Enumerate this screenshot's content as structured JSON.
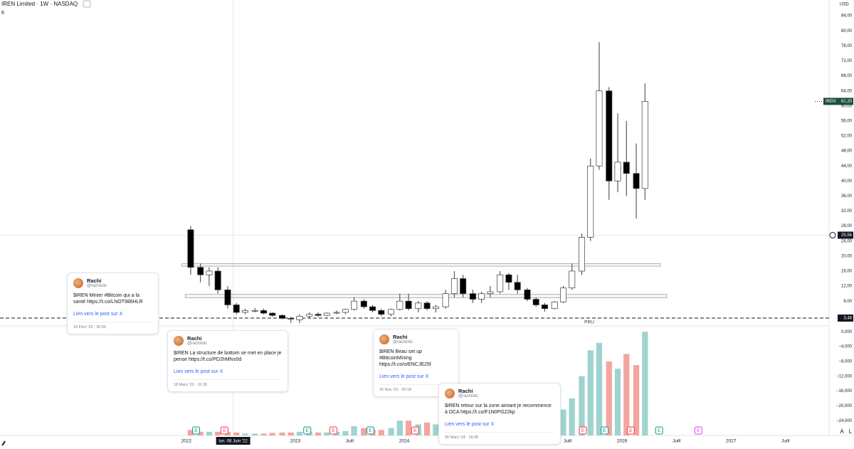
{
  "chart_data": {
    "type": "candlestick",
    "title": "IREN Limited · 1W · NASDAQ",
    "subtitle": "6",
    "currency": "USD",
    "x": [
      2022.04,
      2022.13,
      2022.21,
      2022.29,
      2022.38,
      2022.46,
      2022.54,
      2022.63,
      2022.71,
      2022.79,
      2022.88,
      2022.96,
      2023.04,
      2023.13,
      2023.21,
      2023.29,
      2023.38,
      2023.46,
      2023.54,
      2023.63,
      2023.71,
      2023.79,
      2023.88,
      2023.96,
      2024.04,
      2024.13,
      2024.21,
      2024.29,
      2024.38,
      2024.46,
      2024.54,
      2024.63,
      2024.71,
      2024.79,
      2024.88,
      2024.96,
      2025.04,
      2025.13,
      2025.21,
      2025.29,
      2025.38,
      2025.46,
      2025.54,
      2025.63,
      2025.71,
      2025.79,
      2025.88,
      2025.96,
      2026.04,
      2026.13,
      2026.21
    ],
    "open": [
      27,
      17,
      15,
      16,
      11,
      7,
      5,
      5.5,
      5.5,
      4.8,
      4.2,
      3.4,
      3,
      4,
      4.5,
      4.2,
      4.8,
      5,
      5.8,
      8,
      6.5,
      5.5,
      4.5,
      5.8,
      8,
      6,
      7.5,
      6,
      6.5,
      10,
      14,
      10,
      8.5,
      10,
      10.5,
      15,
      13,
      11,
      8.5,
      7,
      6,
      7.8,
      11.5,
      16,
      25,
      44,
      64,
      40,
      45,
      42,
      38
    ],
    "high": [
      28,
      18,
      17,
      17,
      12,
      7.5,
      6,
      6.2,
      6,
      5,
      4.5,
      3.8,
      4.5,
      5,
      5,
      5,
      5.5,
      6,
      9,
      8.5,
      7,
      6,
      6,
      10,
      10,
      8,
      8,
      7,
      11,
      16,
      15,
      11,
      10.5,
      12,
      16,
      15.5,
      15,
      11.5,
      9,
      7.5,
      8,
      12,
      18,
      26,
      46,
      77,
      65,
      58,
      56,
      50,
      66
    ],
    "low": [
      15,
      13,
      12,
      10,
      6,
      4.5,
      4.5,
      5,
      4.5,
      3.8,
      3.2,
      2.2,
      2.2,
      3.5,
      3.8,
      4,
      4.5,
      4.5,
      5.5,
      6,
      5,
      4,
      4,
      5.5,
      5.5,
      5,
      5.5,
      5,
      6,
      9,
      9,
      7.5,
      7.5,
      9,
      10,
      11,
      10,
      8,
      6.5,
      5.2,
      5.8,
      7.5,
      11,
      15,
      24,
      43,
      35,
      37,
      36,
      30,
      35
    ],
    "close": [
      17,
      15,
      16,
      11,
      7,
      5,
      5.5,
      5.5,
      4.8,
      4.2,
      3.4,
      3.3,
      4,
      4.5,
      4.2,
      4.8,
      5,
      5.8,
      8,
      6.5,
      5.5,
      4.5,
      5.8,
      8,
      6,
      7.5,
      6,
      6.5,
      10,
      14,
      10,
      8.5,
      10,
      10.5,
      15,
      13,
      11,
      8.5,
      7,
      6,
      7.8,
      11.5,
      16,
      25,
      44,
      64,
      40,
      45,
      42,
      38,
      61.2
    ],
    "up_color": "#ffffff",
    "down_color": "#000000",
    "outline_color": "#363a45",
    "xlim": [
      2020.29,
      2027.9
    ],
    "xticks": [
      2022,
      {
        "value": 2023,
        "label": "2023"
      },
      {
        "value": 2023.5,
        "label": "Juill"
      },
      2024,
      {
        "value": 2024.5,
        "label": "Juill"
      },
      2025,
      {
        "value": 2025.5,
        "label": "Juill"
      },
      2026,
      {
        "value": 2026.5,
        "label": "Juill"
      },
      2027,
      {
        "value": 2027.5,
        "label": "Juill"
      }
    ],
    "ylim": [
      1.4,
      88.2
    ],
    "yticks": [
      {
        "value": 8,
        "label": "8,00"
      },
      {
        "value": 12,
        "label": "12,00"
      },
      {
        "value": 16,
        "label": "16,00"
      },
      {
        "value": 20,
        "label": "20,00"
      },
      {
        "value": 24,
        "label": "24,00"
      },
      {
        "value": 28,
        "label": "28,00"
      },
      {
        "value": 32,
        "label": "32,00"
      },
      {
        "value": 36,
        "label": "36,00"
      },
      {
        "value": 40,
        "label": "40,00"
      },
      {
        "value": 44,
        "label": "44,00"
      },
      {
        "value": 48,
        "label": "48,00"
      },
      {
        "value": 52,
        "label": "52,00"
      },
      {
        "value": 56,
        "label": "56,00"
      },
      {
        "value": 60,
        "label": "60,00"
      },
      {
        "value": 64,
        "label": "64,00"
      },
      {
        "value": 68,
        "label": "68,00"
      },
      {
        "value": 72,
        "label": "72,00"
      },
      {
        "value": 76,
        "label": "76,00"
      },
      {
        "value": 80,
        "label": "80,00"
      },
      {
        "value": 84,
        "label": "84,00"
      }
    ],
    "last_price": {
      "symbol": "IREN",
      "value": 61.2,
      "label": "61,20",
      "color": "#1e4d3d"
    },
    "crosshair": {
      "x": 2022.43,
      "x_label": "lun. 06 Juin '22",
      "y": 25.56,
      "y_label": "25,56"
    },
    "pru": {
      "value": 3.48,
      "label": "3,48",
      "name": "PRU"
    },
    "zones": [
      {
        "x": [
          2021.96,
          2026.35
        ],
        "y": [
          17.3,
          18.0
        ]
      },
      {
        "x": [
          2021.99,
          2026.41
        ],
        "y": [
          8.9,
          9.8
        ]
      }
    ],
    "indicator": {
      "type": "bar",
      "up_color": "#9fd3cf",
      "down_color": "#f4a5a0",
      "values": [
        -26.5,
        -27,
        -27,
        -27,
        -27,
        -27.2,
        -27.5,
        -27.5,
        -27.5,
        -27.3,
        -27.2,
        -27.2,
        -27,
        -27,
        -27.2,
        -27.2,
        -27,
        -26.8,
        -25.5,
        -26,
        -26.5,
        -26.5,
        -26,
        -24,
        -24,
        -25,
        -24.5,
        -25,
        -23,
        -21,
        -22,
        -23,
        -23,
        -22,
        -20,
        -21,
        -21,
        -22,
        -22,
        -20,
        -22,
        -21,
        -18,
        -12,
        -5,
        -3,
        -8,
        -10,
        -6,
        -9,
        0
      ],
      "ylim": [
        -28,
        1
      ],
      "yticks": [
        {
          "value": 0,
          "label": "0,000"
        },
        {
          "value": -4,
          "label": "−4,000"
        },
        {
          "value": -8,
          "label": "−8,000"
        },
        {
          "value": -12,
          "label": "−12,000"
        },
        {
          "value": -16,
          "label": "−16,000"
        },
        {
          "value": -20,
          "label": "−20,000"
        },
        {
          "value": -24,
          "label": "−24,000"
        }
      ]
    },
    "earnings": {
      "label": "E",
      "x": [
        2022.09,
        2022.35,
        2023.11,
        2023.35,
        2023.69,
        2024.1,
        2024.35,
        2024.61,
        2024.85,
        2025.13,
        2025.38,
        2025.64,
        2025.84,
        2026.08,
        2026.34,
        2026.7
      ],
      "color": "#f23645",
      "future_color": "#e040fb",
      "past_color": "#089981"
    },
    "scale_buttons": [
      "A",
      "L"
    ]
  },
  "posts": [
    {
      "author": "Rachi",
      "handle": "@rachistic",
      "text": "$IREN Minier #Bitcoin qui a la santé https://t.co/LNOT986HLR",
      "link": "Lien vers le post sur X",
      "date": "15 Févr '23 · 20:55"
    },
    {
      "author": "Rachi",
      "handle": "@rachistic",
      "text": "$IREN La structure de bottom se met en place je pense https://t.co/PD2hMfvs0d",
      "link": "Lien vers le post sur X",
      "date": "18 Mars '23 · 11:39"
    },
    {
      "author": "Rachi",
      "handle": "@rachistic",
      "text": "$IREN Beau set up #BitcoinMining https://t.co/oIENCJE25f",
      "link": "Lien vers le post sur X",
      "date": "15 Nov '23 · 20:18"
    },
    {
      "author": "Rachi",
      "handle": "@rachistic",
      "text": "$IREN retour sur la zone aimant je recommence à DCA https://t.co/F1N0PG22kp",
      "link": "Lien vers le post sur X",
      "date": "06 Mars '24 · 16:45"
    }
  ]
}
